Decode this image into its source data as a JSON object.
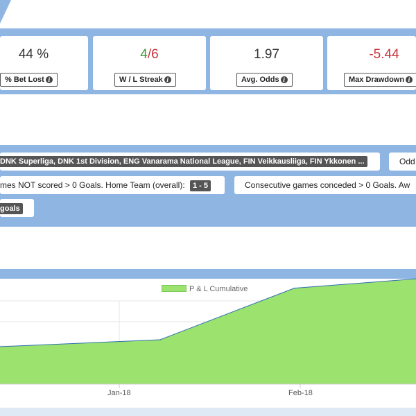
{
  "stats": [
    {
      "key": "bet_lost",
      "value": "44 %",
      "label": "% Bet Lost"
    },
    {
      "key": "streak",
      "win": "4",
      "sep": "/",
      "loss": "6",
      "label": "W / L Streak"
    },
    {
      "key": "avg_odds",
      "value": "1.97",
      "label": "Avg. Odds"
    },
    {
      "key": "drawdown",
      "value": "-5.44",
      "label": "Max Drawdown"
    }
  ],
  "filters": {
    "leagues": "DNK Superliga, DNK 1st Division, ENG Vanarama National League, FIN Veikkausliiga, FIN Ykkonen ...",
    "odds_chip": "Odd",
    "games_not_scored_text": "mes NOT scored > 0 Goals. Home Team (overall):",
    "games_not_scored_tag": "1 - 5",
    "consecutive_conceded_text": "Consecutive games conceded > 0 Goals. Aw",
    "goals_tag": "goals"
  },
  "chart_data": {
    "type": "area",
    "title": "",
    "legend": [
      "P & L Cumulative"
    ],
    "legend_position": "top-center",
    "xlabel": "",
    "ylabel": "",
    "x_ticks": [
      "Jan-18",
      "Feb-18"
    ],
    "series": [
      {
        "name": "P & L Cumulative",
        "color": "#9be26f",
        "line_color": "#2f6fb0",
        "points": [
          {
            "x": "2017-12-06",
            "y": 0.0
          },
          {
            "x": "2018-01-08",
            "y": 0.5
          },
          {
            "x": "2018-01-31",
            "y": 3.6
          },
          {
            "x": "2018-02-26",
            "y": 4.3
          }
        ]
      }
    ],
    "grid": true,
    "ylim_note": "y axis not visible"
  },
  "colors": {
    "band": "#8fb6e3",
    "win": "#3a9a3a",
    "loss": "#c8323c",
    "area_fill": "#9be26f"
  }
}
